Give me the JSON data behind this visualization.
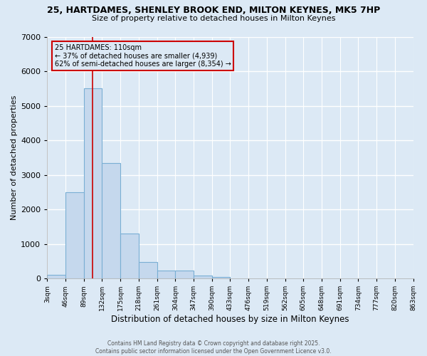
{
  "title_line1": "25, HARTDAMES, SHENLEY BROOK END, MILTON KEYNES, MK5 7HP",
  "title_line2": "Size of property relative to detached houses in Milton Keynes",
  "xlabel": "Distribution of detached houses by size in Milton Keynes",
  "ylabel": "Number of detached properties",
  "bar_color": "#c5d8ed",
  "bar_edge_color": "#7aafd4",
  "background_color": "#dce9f5",
  "grid_color": "#ffffff",
  "annotation_box_color": "#cc0000",
  "annotation_text": "25 HARTDAMES: 110sqm\n← 37% of detached houses are smaller (4,939)\n62% of semi-detached houses are larger (8,354) →",
  "property_line_x": 110,
  "property_line_color": "#cc0000",
  "bin_edges": [
    3,
    46,
    89,
    132,
    175,
    218,
    261,
    304,
    347,
    390,
    433,
    476,
    519,
    562,
    605,
    648,
    691,
    734,
    777,
    820,
    863
  ],
  "bar_heights": [
    100,
    2500,
    5500,
    3350,
    1300,
    480,
    220,
    220,
    80,
    50,
    0,
    0,
    0,
    0,
    0,
    0,
    0,
    0,
    0,
    0
  ],
  "ylim": [
    0,
    7000
  ],
  "yticks": [
    0,
    1000,
    2000,
    3000,
    4000,
    5000,
    6000,
    7000
  ],
  "footer_text": "Contains HM Land Registry data © Crown copyright and database right 2025.\nContains public sector information licensed under the Open Government Licence v3.0.",
  "tick_labels": [
    "3sqm",
    "46sqm",
    "89sqm",
    "132sqm",
    "175sqm",
    "218sqm",
    "261sqm",
    "304sqm",
    "347sqm",
    "390sqm",
    "433sqm",
    "476sqm",
    "519sqm",
    "562sqm",
    "605sqm",
    "648sqm",
    "691sqm",
    "734sqm",
    "777sqm",
    "820sqm",
    "863sqm"
  ]
}
